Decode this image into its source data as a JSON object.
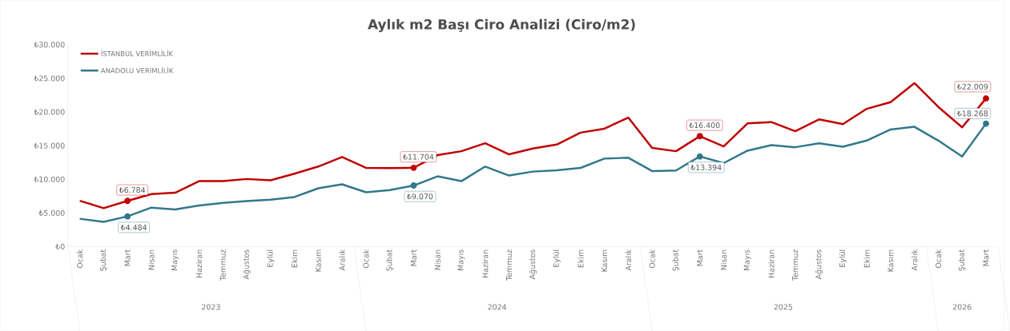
{
  "chart_data": {
    "type": "line",
    "title": "Aylık m2 Başı Ciro Analizi (Ciro/m2)",
    "categories": [
      "Ocak",
      "Şubat",
      "Mart",
      "Nisan",
      "Mayıs",
      "Haziran",
      "Temmuz",
      "Ağustos",
      "Eylül",
      "Ekim",
      "Kasım",
      "Aralık",
      "Ocak",
      "Şubat",
      "Mart",
      "Nisan",
      "Mayıs",
      "Haziran",
      "Temmuz",
      "Ağustos",
      "Eylül",
      "Ekim",
      "Kasım",
      "Aralık",
      "Ocak",
      "Şubat",
      "Mart",
      "Nisan",
      "Mayıs",
      "Haziran",
      "Temmuz",
      "Ağustos",
      "Eylül",
      "Ekim",
      "Kasım",
      "Aralık",
      "Ocak",
      "Şubat",
      "Mart"
    ],
    "series": [
      {
        "name": "İSTANBUL VERİMLİLİK",
        "color": "#c00000",
        "values": [
          6810,
          5710,
          6784,
          7790,
          8000,
          9720,
          9720,
          10040,
          9840,
          10830,
          11890,
          13310,
          11690,
          11650,
          11704,
          13580,
          14170,
          15350,
          13700,
          14570,
          15160,
          16930,
          17520,
          19170,
          14650,
          14170,
          16400,
          14880,
          18300,
          18500,
          17130,
          18900,
          18190,
          20470,
          21460,
          24290,
          20750,
          17720,
          22009
        ],
        "value_labels": [
          null,
          null,
          "₺6.784",
          null,
          null,
          null,
          null,
          null,
          null,
          null,
          null,
          null,
          null,
          null,
          "₺11.704",
          null,
          null,
          null,
          null,
          null,
          null,
          null,
          null,
          null,
          null,
          null,
          "₺16.400",
          null,
          null,
          null,
          null,
          null,
          null,
          null,
          null,
          null,
          null,
          null,
          "₺22.009"
        ]
      },
      {
        "name": "ANADOLU VERİMLİLİK",
        "color": "#31788a",
        "values": [
          4130,
          3660,
          4484,
          5790,
          5510,
          6100,
          6500,
          6770,
          6970,
          7360,
          8660,
          9250,
          8070,
          8390,
          9070,
          10430,
          9720,
          11890,
          10550,
          11140,
          11340,
          11690,
          13070,
          13190,
          11220,
          11300,
          13394,
          12400,
          14250,
          15080,
          14760,
          15350,
          14840,
          15750,
          17400,
          17800,
          15750,
          13380,
          18268
        ],
        "value_labels": [
          null,
          null,
          "₺4.484",
          null,
          null,
          null,
          null,
          null,
          null,
          null,
          null,
          null,
          null,
          null,
          "₺9.070",
          null,
          null,
          null,
          null,
          null,
          null,
          null,
          null,
          null,
          null,
          null,
          "₺13.394",
          null,
          null,
          null,
          null,
          null,
          null,
          null,
          null,
          null,
          null,
          null,
          "₺18.268"
        ]
      }
    ],
    "ylim": [
      0,
      30000
    ],
    "yticks": [
      {
        "value": 0,
        "label": "₺0"
      },
      {
        "value": 5000,
        "label": "₺5.000"
      },
      {
        "value": 10000,
        "label": "₺10.000"
      },
      {
        "value": 15000,
        "label": "₺15.000"
      },
      {
        "value": 20000,
        "label": "₺20.000"
      },
      {
        "value": 25000,
        "label": "₺25.000"
      },
      {
        "value": 30000,
        "label": "₺30.000"
      }
    ],
    "legend": "top left",
    "annotations": [
      "2023",
      "2024",
      "2025",
      "2026"
    ]
  }
}
